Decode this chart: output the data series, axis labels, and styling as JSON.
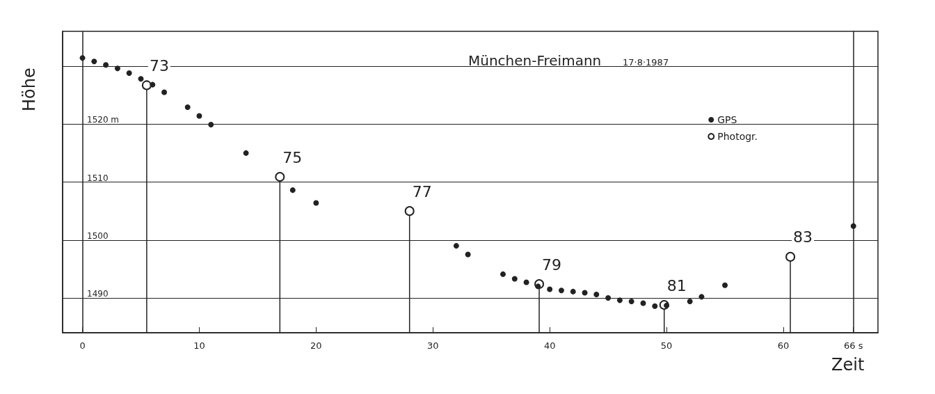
{
  "chart_data": {
    "type": "scatter",
    "title": "München-Freimann",
    "subtitle": "17·8·1987",
    "xlabel": "Zeit",
    "ylabel": "Höhe",
    "xlim": [
      -1.7,
      68.1
    ],
    "ylim": [
      1484,
      1536
    ],
    "xticks": [
      0,
      10,
      20,
      30,
      40,
      50,
      60,
      {
        "value": 66,
        "label": "66 s"
      }
    ],
    "yticks": [
      {
        "value": 1490,
        "label": "1490"
      },
      {
        "value": 1500,
        "label": "1500"
      },
      {
        "value": 1510,
        "label": "1510"
      },
      {
        "value": 1520,
        "label": "1520 m"
      },
      {
        "value": 1530,
        "label": null
      }
    ],
    "grid": "y",
    "legend": "top right",
    "ref_lines": [
      {
        "axis": "x",
        "value": 0
      },
      {
        "axis": "x",
        "value": 66
      }
    ],
    "series": [
      {
        "name": "GPS",
        "type": "scatter",
        "marker": "circle",
        "color": "#222222",
        "x": [
          0,
          1,
          2,
          3,
          4,
          5,
          6,
          7,
          9,
          10,
          11,
          14,
          18,
          20,
          32,
          33,
          36,
          37,
          38,
          39,
          40,
          41,
          42,
          43,
          44,
          45,
          46,
          47,
          48,
          49,
          50,
          52,
          53,
          55,
          66
        ],
        "values": [
          1531.4,
          1530.8,
          1530.2,
          1529.6,
          1528.8,
          1527.8,
          1526.8,
          1525.5,
          1522.9,
          1521.4,
          1519.9,
          1515.0,
          1508.6,
          1506.4,
          1499.0,
          1497.5,
          1494.1,
          1493.3,
          1492.7,
          1492.0,
          1491.5,
          1491.3,
          1491.1,
          1490.9,
          1490.6,
          1490.0,
          1489.6,
          1489.4,
          1489.1,
          1488.6,
          1488.7,
          1489.4,
          1490.2,
          1492.2,
          1502.4
        ]
      },
      {
        "name": "Photogr.",
        "type": "lollipop",
        "marker": "circle",
        "color": "#222222",
        "x": [
          5.5,
          16.9,
          28.0,
          39.1,
          49.8,
          60.6
        ],
        "values": [
          1526.7,
          1510.9,
          1505.0,
          1492.4,
          1488.8,
          1497.1
        ]
      }
    ],
    "annotations": [
      {
        "text": "73",
        "x": 5.5,
        "y": 1526.7
      },
      {
        "text": "75",
        "x": 16.9,
        "y": 1510.9
      },
      {
        "text": "77",
        "x": 28.0,
        "y": 1505.0
      },
      {
        "text": "79",
        "x": 39.1,
        "y": 1492.4
      },
      {
        "text": "81",
        "x": 49.8,
        "y": 1488.8
      },
      {
        "text": "83",
        "x": 60.6,
        "y": 1497.1
      }
    ]
  }
}
